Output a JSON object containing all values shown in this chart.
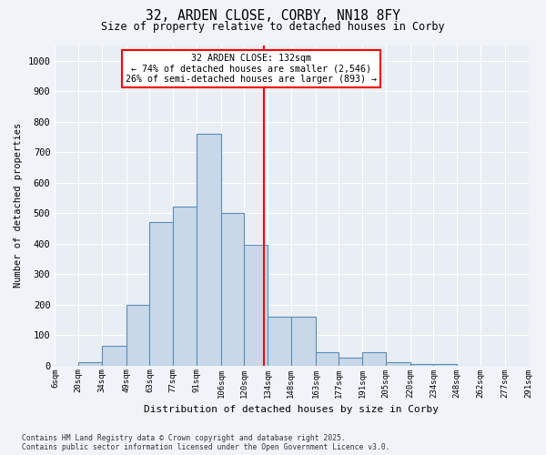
{
  "title1": "32, ARDEN CLOSE, CORBY, NN18 8FY",
  "title2": "Size of property relative to detached houses in Corby",
  "xlabel": "Distribution of detached houses by size in Corby",
  "ylabel": "Number of detached properties",
  "bin_labels": [
    "6sqm",
    "20sqm",
    "34sqm",
    "49sqm",
    "63sqm",
    "77sqm",
    "91sqm",
    "106sqm",
    "120sqm",
    "134sqm",
    "148sqm",
    "163sqm",
    "177sqm",
    "191sqm",
    "205sqm",
    "220sqm",
    "234sqm",
    "248sqm",
    "262sqm",
    "277sqm",
    "291sqm"
  ],
  "bin_edges": [
    6,
    20,
    34,
    49,
    63,
    77,
    91,
    106,
    120,
    134,
    148,
    163,
    177,
    191,
    205,
    220,
    234,
    248,
    262,
    277,
    291
  ],
  "bar_heights": [
    0,
    10,
    65,
    200,
    470,
    520,
    760,
    500,
    395,
    160,
    160,
    45,
    25,
    45,
    10,
    5,
    5,
    0,
    0,
    0
  ],
  "bar_color": "#c8d8e8",
  "bar_edge_color": "#5b8db8",
  "property_line_x": 132,
  "annotation_title": "32 ARDEN CLOSE: 132sqm",
  "annotation_line1": "← 74% of detached houses are smaller (2,546)",
  "annotation_line2": "26% of semi-detached houses are larger (893) →",
  "vline_color": "red",
  "annotation_box_color": "white",
  "annotation_box_edge": "red",
  "ylim": [
    0,
    1050
  ],
  "yticks": [
    0,
    100,
    200,
    300,
    400,
    500,
    600,
    700,
    800,
    900,
    1000
  ],
  "footer1": "Contains HM Land Registry data © Crown copyright and database right 2025.",
  "footer2": "Contains public sector information licensed under the Open Government Licence v3.0.",
  "bg_color": "#f0f4f8",
  "plot_bg_color": "#e8eef4"
}
